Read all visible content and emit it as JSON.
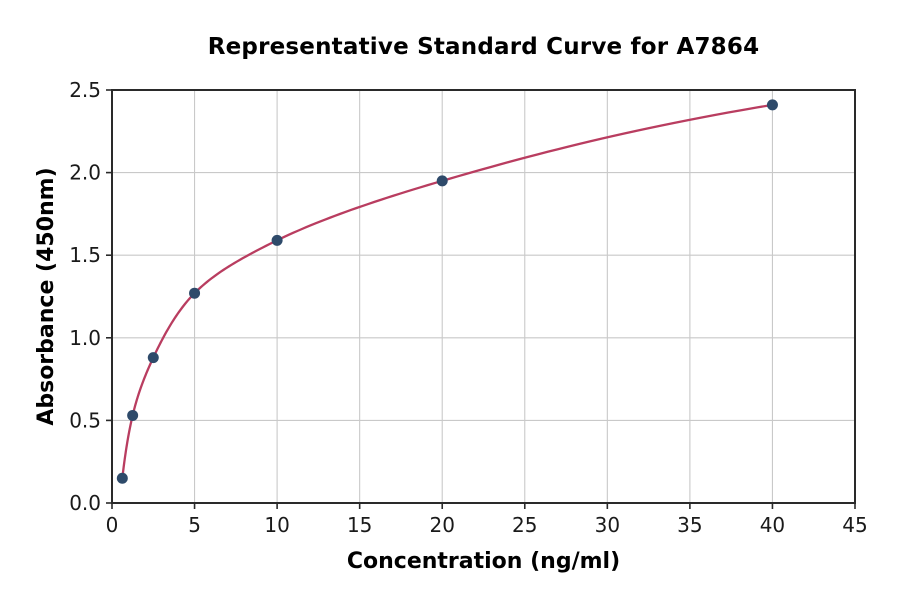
{
  "chart_data": {
    "type": "scatter",
    "title": "Representative Standard Curve for A7864",
    "xlabel": "Concentration (ng/ml)",
    "ylabel": "Absorbance (450nm)",
    "xlim": [
      0,
      45
    ],
    "ylim": [
      0,
      2.5
    ],
    "x_ticks": [
      0,
      5,
      10,
      15,
      20,
      25,
      30,
      35,
      40,
      45
    ],
    "x_tick_labels": [
      "0",
      "5",
      "10",
      "15",
      "20",
      "25",
      "30",
      "35",
      "40",
      "45"
    ],
    "y_ticks": [
      0,
      0.5,
      1.0,
      1.5,
      2.0,
      2.5
    ],
    "y_tick_labels": [
      "0.0",
      "0.5",
      "1.0",
      "1.5",
      "2.0",
      "2.5"
    ],
    "grid": true,
    "legend_position": "none",
    "series": [
      {
        "name": "standard-curve",
        "x": [
          0.625,
          1.25,
          2.5,
          5,
          10,
          20,
          40
        ],
        "y": [
          0.15,
          0.53,
          0.88,
          1.27,
          1.59,
          1.95,
          2.41
        ],
        "fit": "smooth curve through points (log-spaced standards)"
      }
    ],
    "colors": {
      "curve": "#b93d60",
      "marker": "#2e4a6a",
      "grid": "#c9c9c9",
      "axis": "#2a2a2a",
      "background": "#ffffff",
      "text": "#000000"
    }
  }
}
